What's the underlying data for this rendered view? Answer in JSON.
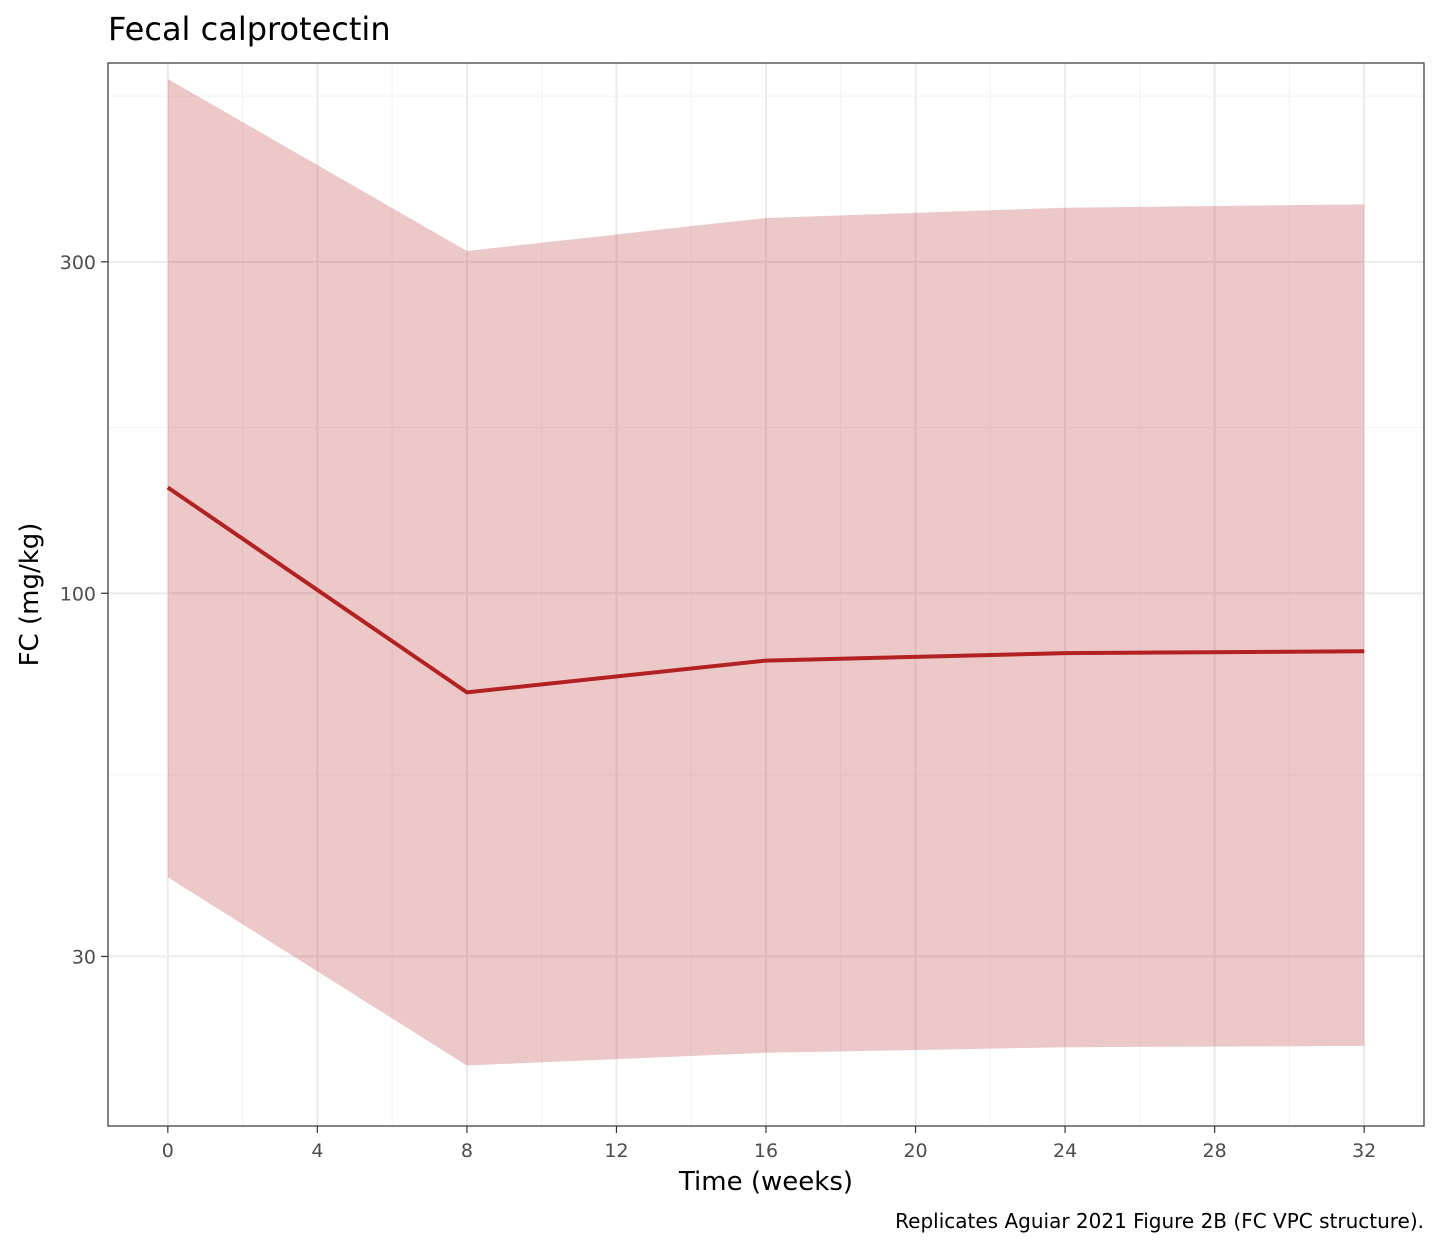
{
  "chart_data": {
    "type": "line",
    "title": "Fecal calprotectin",
    "xlabel": "Time (weeks)",
    "ylabel": "FC (mg/kg)",
    "caption": "Replicates Aguiar 2021 Figure 2B (FC VPC structure).",
    "x_scale": "linear",
    "y_scale": "log10",
    "xlim": [
      -1.6,
      33.6
    ],
    "ylim": [
      17.1,
      580
    ],
    "x_ticks": [
      0,
      4,
      8,
      12,
      16,
      20,
      24,
      28,
      32
    ],
    "x_tick_labels": [
      "0",
      "4",
      "8",
      "12",
      "16",
      "20",
      "24",
      "28",
      "32"
    ],
    "y_ticks": [
      30,
      100,
      300
    ],
    "y_tick_labels": [
      "30",
      "100",
      "300"
    ],
    "grid": true,
    "x": [
      0,
      8,
      16,
      24,
      32
    ],
    "series": [
      {
        "kind": "line",
        "values": [
          142,
          72,
          80,
          82,
          82.5
        ],
        "color": "#b22222"
      },
      {
        "kind": "ribbon",
        "lower": [
          39,
          20.9,
          21.8,
          22.2,
          22.3
        ],
        "upper": [
          550,
          311,
          347,
          359,
          363
        ],
        "color": "#b22222",
        "opacity": 0.25
      }
    ]
  }
}
